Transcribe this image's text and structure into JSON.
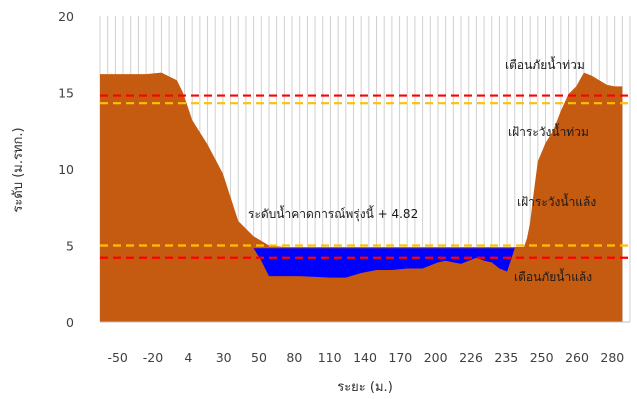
{
  "chart_data": {
    "type": "area",
    "title": "",
    "xlabel": "ระยะ (ม.)",
    "ylabel": "ระดับ (ม.รทก.)",
    "ylim": [
      0,
      20
    ],
    "y_ticks": [
      0,
      5,
      10,
      15,
      20
    ],
    "x_categories": [
      "-50",
      "-20",
      "4",
      "30",
      "50",
      "80",
      "110",
      "140",
      "170",
      "200",
      "226",
      "235",
      "250",
      "260",
      "280"
    ],
    "grid": "vertical",
    "series": [
      {
        "kind": "ground",
        "color": "#c55a11",
        "x": [
          -50,
          -40,
          -30,
          -20,
          -10,
          0,
          4,
          10,
          20,
          30,
          40,
          50,
          60,
          70,
          80,
          90,
          100,
          110,
          120,
          130,
          140,
          150,
          160,
          170,
          180,
          190,
          200,
          210,
          215,
          220,
          226,
          228,
          230,
          232,
          235,
          240,
          245,
          250,
          255,
          260,
          265,
          270,
          275,
          280,
          285,
          290
        ],
        "y": [
          16.2,
          16.2,
          16.2,
          16.2,
          16.3,
          15.8,
          15.0,
          13.2,
          11.6,
          9.7,
          6.6,
          5.6,
          5.0,
          4.9,
          4.9,
          4.9,
          4.9,
          4.9,
          4.9,
          4.9,
          4.9,
          4.9,
          4.9,
          4.9,
          4.9,
          4.9,
          4.9,
          4.9,
          4.9,
          4.9,
          4.9,
          5.5,
          6.5,
          8.2,
          10.5,
          11.7,
          12.5,
          13.8,
          14.9,
          15.4,
          16.3,
          16.1,
          15.8,
          15.5,
          15.4,
          15.4
        ]
      },
      {
        "kind": "water",
        "color": "#0000ff",
        "level": 4.82,
        "x": [
          50,
          55,
          60,
          65,
          70,
          80,
          90,
          100,
          110,
          120,
          130,
          140,
          150,
          160,
          170,
          175,
          180,
          185,
          190,
          195,
          200,
          205,
          210,
          215,
          220
        ],
        "bed": [
          4.82,
          4.0,
          3.0,
          3.0,
          3.0,
          3.0,
          2.95,
          2.9,
          2.9,
          3.2,
          3.4,
          3.4,
          3.5,
          3.5,
          3.9,
          4.0,
          3.9,
          3.8,
          4.0,
          4.2,
          4.0,
          3.9,
          3.5,
          3.3,
          4.82
        ]
      }
    ],
    "reference_lines": [
      {
        "name": "เตือนภัยน้ำท่วม",
        "value": 14.8,
        "color": "#ff0000"
      },
      {
        "name": "เฝ้าระวังน้ำท่วม",
        "value": 14.3,
        "color": "#ffc000"
      },
      {
        "name": "เฝ้าระวังน้ำแล้ง",
        "value": 5.0,
        "color": "#ffc000"
      },
      {
        "name": "เตือนภัยน้ำแล้ง",
        "value": 4.2,
        "color": "#ff0000"
      }
    ],
    "annotations": {
      "flood_warning": "เตือนภัยน้ำท่วม",
      "flood_watch": "เฝ้าระวังน้ำท่วม",
      "water_level": "ระดับน้ำคาดการณ์พรุ่งนี้ + 4.82",
      "drought_watch": "เฝ้าระวังน้ำแล้ง",
      "drought_warning": "เตือนภัยน้ำแล้ง"
    }
  }
}
